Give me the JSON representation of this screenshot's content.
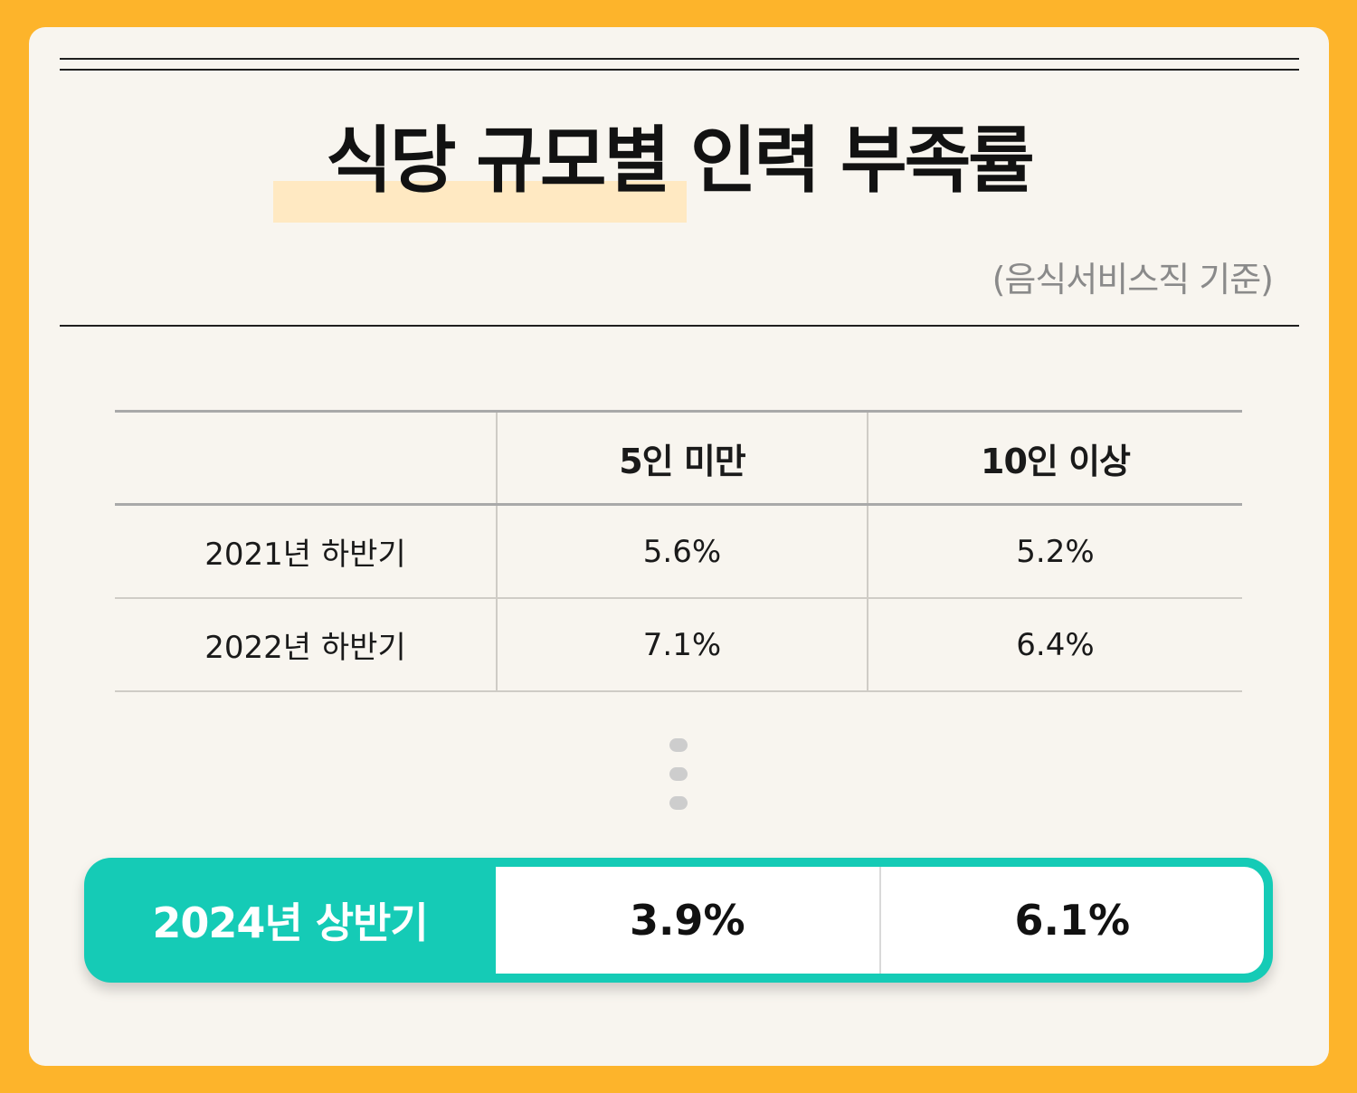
{
  "title": "식당 규모별 인력 부족률",
  "subtitle": "(음식서비스직 기준)",
  "colors": {
    "outer_frame": "#FDB42B",
    "card": "#F8F5EF",
    "title_highlight": "#FFE9C2",
    "accent": "#15CBB6"
  },
  "chart_data": {
    "type": "table",
    "title": "식당 규모별 인력 부족률",
    "subtitle": "(음식서비스직 기준)",
    "columns": [
      "",
      "5인 미만",
      "10인 이상"
    ],
    "rows": [
      {
        "label": "2021년 하반기",
        "values": [
          "5.6%",
          "5.2%"
        ]
      },
      {
        "label": "2022년 하반기",
        "values": [
          "7.1%",
          "6.4%"
        ]
      }
    ],
    "highlight_row": {
      "label": "2024년 상반기",
      "values": [
        "3.9%",
        "6.1%"
      ]
    },
    "ellipsis": "vertical-dots"
  }
}
